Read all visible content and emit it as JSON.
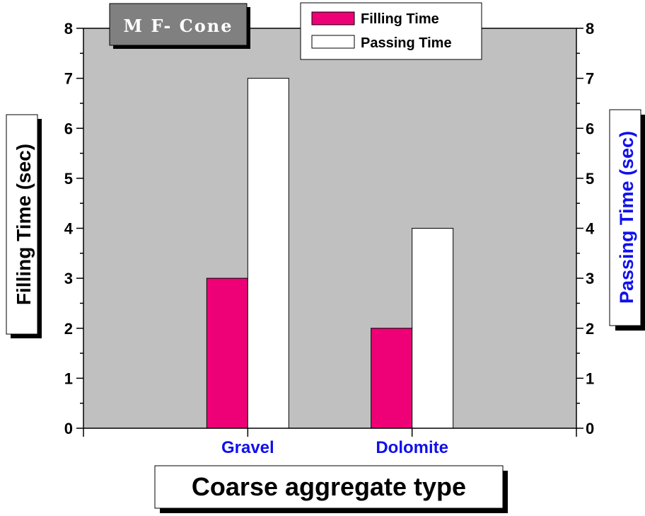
{
  "chart_data": {
    "type": "bar",
    "title": "M F- Cone",
    "xlabel": "Coarse aggregate type",
    "ylabel": "Filling Time (sec)",
    "y2label": "Passing Time (sec)",
    "categories": [
      "Gravel",
      "Dolomite"
    ],
    "series": [
      {
        "name": "Filling Time",
        "values": [
          3,
          2
        ],
        "color": "#ee0077",
        "axis": "left"
      },
      {
        "name": "Passing Time",
        "values": [
          7,
          4
        ],
        "color": "#ffffff",
        "axis": "right"
      }
    ],
    "ylim": [
      0,
      8
    ],
    "y2lim": [
      0,
      8
    ],
    "yticks": [
      0,
      1,
      2,
      3,
      4,
      5,
      6,
      7,
      8
    ],
    "grid": false,
    "legend": "top-right",
    "colors": {
      "plot_background": "#c0c0c0",
      "category_label": "#1010ee",
      "y2label": "#1010ee",
      "title_box": "#808080",
      "title_text": "#ffffff"
    }
  }
}
